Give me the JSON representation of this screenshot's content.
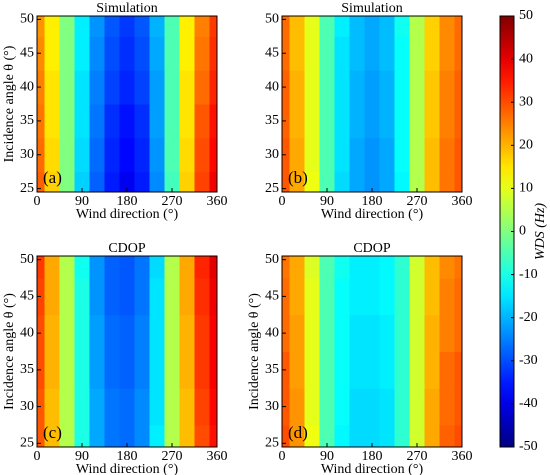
{
  "chart_data": [
    {
      "type": "heatmap",
      "title": "Simulation",
      "panel_label": "(a)",
      "xlabel": "Wind direction (°)",
      "ylabel": "Incidence angle θ (°)",
      "x": [
        0,
        30,
        60,
        90,
        120,
        150,
        180,
        210,
        240,
        270,
        300,
        330,
        360
      ],
      "y": [
        25,
        30,
        35,
        40,
        45,
        50
      ],
      "values": [
        [
          28,
          17,
          0,
          -17,
          -28,
          -35,
          -39,
          -35,
          -24,
          -6,
          17,
          31,
          39
        ],
        [
          27,
          16,
          0,
          -16,
          -27,
          -34,
          -37,
          -34,
          -23,
          -5,
          16,
          30,
          37
        ],
        [
          26,
          15,
          0,
          -15,
          -26,
          -33,
          -36,
          -33,
          -22,
          -5,
          15,
          29,
          36
        ],
        [
          25,
          15,
          0,
          -15,
          -25,
          -31,
          -34,
          -31,
          -22,
          -5,
          15,
          27,
          34
        ],
        [
          24,
          14,
          0,
          -14,
          -24,
          -30,
          -33,
          -30,
          -21,
          -5,
          14,
          26,
          33
        ],
        [
          23,
          14,
          0,
          -14,
          -23,
          -29,
          -32,
          -29,
          -20,
          -5,
          14,
          25,
          32
        ]
      ],
      "xlim": [
        0,
        360
      ],
      "ylim": [
        24.5,
        50.5
      ],
      "xticks": [
        0,
        90,
        180,
        270,
        360
      ],
      "yticks": [
        25,
        30,
        35,
        40,
        45,
        50
      ]
    },
    {
      "type": "heatmap",
      "title": "Simulation",
      "panel_label": "(b)",
      "xlabel": "Wind direction (°)",
      "x": [
        0,
        30,
        60,
        90,
        120,
        150,
        180,
        210,
        240,
        270,
        300,
        330,
        360
      ],
      "y": [
        25,
        30,
        35,
        40,
        45,
        50
      ],
      "values": [
        [
          29,
          21,
          11,
          -5,
          -16,
          -21,
          -23,
          -21,
          -13,
          5,
          19,
          26,
          29
        ],
        [
          29,
          21,
          10,
          -5,
          -15,
          -21,
          -23,
          -21,
          -12,
          5,
          19,
          26,
          29
        ],
        [
          28,
          20,
          10,
          -5,
          -15,
          -20,
          -22,
          -20,
          -12,
          5,
          18,
          25,
          28
        ],
        [
          28,
          20,
          10,
          -5,
          -15,
          -20,
          -22,
          -20,
          -12,
          5,
          18,
          25,
          28
        ],
        [
          27,
          19,
          10,
          -5,
          -15,
          -19,
          -21,
          -19,
          -12,
          5,
          17,
          24,
          27
        ],
        [
          27,
          19,
          10,
          -5,
          -14,
          -19,
          -21,
          -19,
          -11,
          5,
          17,
          24,
          27
        ]
      ],
      "xlim": [
        0,
        360
      ],
      "ylim": [
        24.5,
        50.5
      ],
      "xticks": [
        0,
        90,
        180,
        270,
        360
      ],
      "yticks": [
        25,
        30,
        35,
        40,
        45,
        50
      ]
    },
    {
      "type": "heatmap",
      "title": "CDOP",
      "panel_label": "(c)",
      "xlabel": "Wind direction (°)",
      "ylabel": "Incidence angle θ (°)",
      "x": [
        0,
        30,
        60,
        90,
        120,
        150,
        180,
        210,
        240,
        270,
        300,
        330,
        360
      ],
      "y": [
        25,
        30,
        35,
        40,
        45,
        50
      ],
      "values": [
        [
          29,
          19,
          5,
          -10,
          -21,
          -26,
          -27,
          -24,
          -14,
          5,
          19,
          30,
          36
        ],
        [
          29,
          19,
          5,
          -10,
          -21,
          -26,
          -27,
          -24,
          -15,
          5,
          19,
          31,
          37
        ],
        [
          30,
          20,
          5,
          -10,
          -22,
          -27,
          -28,
          -25,
          -15,
          5,
          20,
          32,
          38
        ],
        [
          30,
          20,
          5,
          -10,
          -22,
          -27,
          -28,
          -25,
          -15,
          5,
          20,
          32,
          38
        ],
        [
          31,
          21,
          5,
          -10,
          -23,
          -28,
          -29,
          -26,
          -15,
          5,
          21,
          33,
          39
        ],
        [
          32,
          21,
          5,
          -11,
          -23,
          -28,
          -29,
          -26,
          -16,
          5,
          21,
          34,
          40
        ]
      ],
      "xlim": [
        0,
        360
      ],
      "ylim": [
        24.5,
        50.5
      ],
      "xticks": [
        0,
        90,
        180,
        270,
        360
      ],
      "yticks": [
        25,
        30,
        35,
        40,
        45,
        50
      ]
    },
    {
      "type": "heatmap",
      "title": "CDOP",
      "panel_label": "(d)",
      "xlabel": "Wind direction (°)",
      "ylabel": "Incidence angle θ (°)",
      "x": [
        0,
        30,
        60,
        90,
        120,
        150,
        180,
        210,
        240,
        270,
        300,
        330,
        360
      ],
      "y": [
        25,
        30,
        35,
        40,
        45,
        50
      ],
      "values": [
        [
          30,
          23,
          11,
          -5,
          -13,
          -16,
          -16,
          -15,
          -8,
          8,
          21,
          28,
          30
        ],
        [
          29,
          23,
          10,
          -5,
          -12,
          -16,
          -16,
          -15,
          -8,
          8,
          21,
          27,
          29
        ],
        [
          29,
          22,
          10,
          -5,
          -12,
          -15,
          -15,
          -14,
          -8,
          8,
          20,
          27,
          29
        ],
        [
          27,
          22,
          10,
          -5,
          -12,
          -15,
          -15,
          -14,
          -8,
          8,
          20,
          25,
          27
        ],
        [
          27,
          21,
          10,
          -5,
          -12,
          -14,
          -14,
          -13,
          -8,
          8,
          19,
          25,
          27
        ],
        [
          26,
          21,
          9,
          -5,
          -11,
          -14,
          -14,
          -13,
          -8,
          8,
          19,
          24,
          26
        ]
      ],
      "xlim": [
        0,
        360
      ],
      "ylim": [
        24.5,
        50.5
      ],
      "xticks": [
        0,
        90,
        180,
        270,
        360
      ],
      "yticks": [
        25,
        30,
        35,
        40,
        45,
        50
      ]
    }
  ],
  "colorbar": {
    "label": "WDS (Hz)",
    "colormap": "jet",
    "lim": [
      -50,
      50
    ],
    "ticks": [
      50,
      40,
      30,
      20,
      10,
      0,
      -10,
      -20,
      -30,
      -40,
      -50
    ]
  }
}
